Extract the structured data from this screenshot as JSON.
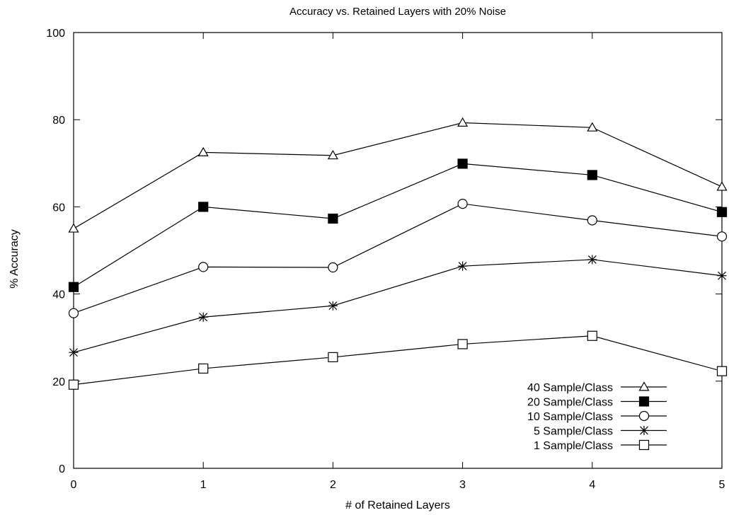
{
  "chart_data": {
    "type": "line",
    "title": "Accuracy vs. Retained Layers with 20% Noise",
    "xlabel": "# of Retained Layers",
    "ylabel": "% Accuracy",
    "x": [
      0,
      1,
      2,
      3,
      4,
      5
    ],
    "xlim": [
      0,
      5
    ],
    "ylim": [
      0,
      100
    ],
    "xticks": [
      "0",
      "1",
      "2",
      "3",
      "4",
      "5"
    ],
    "yticks": [
      "0",
      "20",
      "40",
      "60",
      "80",
      "100"
    ],
    "grid": false,
    "legend_position": "bottom-right",
    "series": [
      {
        "name": "40 Sample/Class",
        "marker": "triangle-open",
        "values": [
          55.0,
          72.5,
          71.8,
          79.3,
          78.2,
          64.6
        ]
      },
      {
        "name": "20 Sample/Class",
        "marker": "square-filled",
        "values": [
          41.6,
          60.0,
          57.3,
          69.9,
          67.3,
          58.8
        ]
      },
      {
        "name": "10 Sample/Class",
        "marker": "circle-open",
        "values": [
          35.6,
          46.2,
          46.1,
          60.7,
          56.9,
          53.2
        ]
      },
      {
        "name": "5 Sample/Class",
        "marker": "asterisk",
        "values": [
          26.6,
          34.7,
          37.3,
          46.4,
          47.9,
          44.2
        ]
      },
      {
        "name": "1 Sample/Class",
        "marker": "square-open",
        "values": [
          19.2,
          22.9,
          25.5,
          28.5,
          30.4,
          22.3
        ]
      }
    ]
  }
}
